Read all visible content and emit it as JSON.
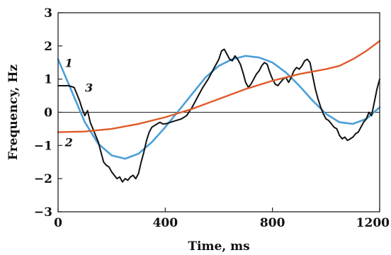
{
  "chart_data": {
    "type": "line",
    "title": "",
    "xlabel": "Time, ms",
    "ylabel": "Frequency, Hz",
    "xlim": [
      0,
      1200
    ],
    "ylim": [
      -3,
      3
    ],
    "xticks": [
      0,
      400,
      800,
      1200
    ],
    "yticks": [
      -3,
      -2,
      -1,
      0,
      1,
      2,
      3
    ],
    "xtick_labels": [
      "0",
      "400",
      "800",
      "1200"
    ],
    "ytick_labels": [
      "−3",
      "−2",
      "−1",
      "0",
      "1",
      "2",
      "3"
    ],
    "zero_line": true,
    "grid": false,
    "legend": "none",
    "series": [
      {
        "name": "1",
        "color": "#4a9fd8",
        "x": [
          0,
          50,
          100,
          150,
          200,
          250,
          300,
          350,
          400,
          450,
          500,
          550,
          600,
          650,
          700,
          750,
          800,
          850,
          900,
          950,
          1000,
          1050,
          1100,
          1150,
          1200
        ],
        "y": [
          1.6,
          0.65,
          -0.3,
          -0.95,
          -1.3,
          -1.4,
          -1.25,
          -0.9,
          -0.45,
          0.05,
          0.55,
          1.05,
          1.4,
          1.6,
          1.7,
          1.65,
          1.5,
          1.2,
          0.8,
          0.35,
          -0.05,
          -0.3,
          -0.35,
          -0.2,
          0.15
        ]
      },
      {
        "name": "2",
        "color": "#e05a2b",
        "x": [
          0,
          100,
          200,
          300,
          400,
          500,
          600,
          700,
          800,
          900,
          1000,
          1050,
          1100,
          1150,
          1200
        ],
        "y": [
          -0.6,
          -0.58,
          -0.5,
          -0.35,
          -0.15,
          0.1,
          0.4,
          0.7,
          0.95,
          1.15,
          1.3,
          1.4,
          1.6,
          1.85,
          2.15
        ]
      },
      {
        "name": "3",
        "color": "#111111",
        "x": [
          0,
          20,
          40,
          60,
          80,
          90,
          100,
          110,
          120,
          130,
          140,
          150,
          160,
          170,
          180,
          190,
          200,
          210,
          220,
          230,
          240,
          250,
          260,
          270,
          280,
          290,
          300,
          310,
          320,
          330,
          340,
          350,
          360,
          370,
          380,
          390,
          400,
          420,
          440,
          460,
          480,
          500,
          520,
          540,
          560,
          580,
          600,
          610,
          620,
          630,
          640,
          650,
          660,
          670,
          680,
          690,
          700,
          710,
          720,
          730,
          740,
          750,
          760,
          770,
          780,
          790,
          800,
          810,
          820,
          830,
          840,
          850,
          860,
          870,
          880,
          890,
          900,
          910,
          920,
          930,
          940,
          950,
          960,
          970,
          980,
          990,
          1000,
          1010,
          1020,
          1030,
          1040,
          1050,
          1060,
          1070,
          1080,
          1090,
          1100,
          1110,
          1120,
          1130,
          1140,
          1150,
          1160,
          1170,
          1180,
          1190,
          1200
        ],
        "y": [
          0.8,
          0.8,
          0.8,
          0.75,
          0.35,
          0.1,
          -0.1,
          0.05,
          -0.3,
          -0.5,
          -0.7,
          -0.9,
          -1.2,
          -1.5,
          -1.6,
          -1.65,
          -1.8,
          -1.9,
          -2.0,
          -1.95,
          -2.1,
          -2.0,
          -2.05,
          -1.95,
          -1.9,
          -2.0,
          -1.85,
          -1.5,
          -1.2,
          -0.85,
          -0.6,
          -0.45,
          -0.4,
          -0.35,
          -0.3,
          -0.35,
          -0.35,
          -0.3,
          -0.25,
          -0.2,
          -0.1,
          0.15,
          0.45,
          0.75,
          1.0,
          1.3,
          1.6,
          1.85,
          1.9,
          1.75,
          1.6,
          1.55,
          1.7,
          1.6,
          1.45,
          1.2,
          0.9,
          0.75,
          0.85,
          1.0,
          1.15,
          1.25,
          1.4,
          1.5,
          1.45,
          1.2,
          1.0,
          0.85,
          0.8,
          0.9,
          1.0,
          1.05,
          0.9,
          1.05,
          1.25,
          1.35,
          1.3,
          1.4,
          1.55,
          1.6,
          1.5,
          1.1,
          0.7,
          0.4,
          0.15,
          -0.05,
          -0.2,
          -0.25,
          -0.35,
          -0.45,
          -0.5,
          -0.7,
          -0.8,
          -0.75,
          -0.85,
          -0.8,
          -0.75,
          -0.65,
          -0.6,
          -0.45,
          -0.3,
          -0.2,
          0.0,
          -0.1,
          0.3,
          0.7,
          1.0
        ]
      }
    ],
    "annotations": [
      {
        "text": "1",
        "x": 40,
        "y": 1.5
      },
      {
        "text": "2",
        "x": 40,
        "y": -0.9
      },
      {
        "text": "3",
        "x": 115,
        "y": 0.75
      }
    ]
  }
}
